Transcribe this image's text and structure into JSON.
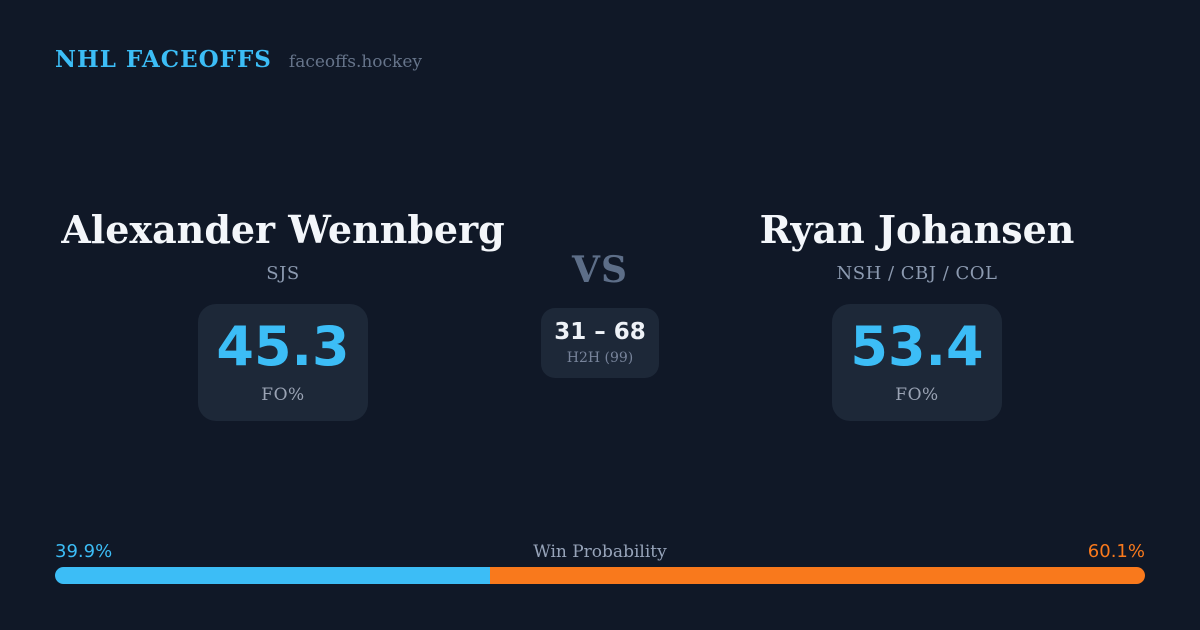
{
  "colors": {
    "bg": "#101827",
    "card": "#1d2838",
    "blue": "#3cbdf6",
    "orange": "#f9791c",
    "text-primary": "#f3f6fa",
    "text-muted": "#8c9ab0",
    "text-dim": "#5d6e88",
    "site": "#66748a"
  },
  "header": {
    "brand": "NHL FACEOFFS",
    "site": "faceoffs.hockey"
  },
  "matchup": {
    "vs_label": "VS",
    "h2h": {
      "score": "31 – 68",
      "label": "H2H (99)"
    },
    "players": [
      {
        "name": "Alexander Wennberg",
        "teams": "SJS",
        "fo_pct": "45.3",
        "stat_label": "FO%"
      },
      {
        "name": "Ryan Johansen",
        "teams": "NSH / CBJ / COL",
        "fo_pct": "53.4",
        "stat_label": "FO%"
      }
    ]
  },
  "win_probability": {
    "label": "Win Probability",
    "left_pct": "39.9%",
    "right_pct": "60.1%",
    "left_value": 39.9,
    "right_value": 60.1
  },
  "chart_data": {
    "type": "bar",
    "orientation": "horizontal_stacked",
    "title": "Win Probability",
    "categories": [
      "Win Probability"
    ],
    "series": [
      {
        "name": "Alexander Wennberg",
        "values": [
          39.9
        ],
        "color": "#3cbdf6"
      },
      {
        "name": "Ryan Johansen",
        "values": [
          60.1
        ],
        "color": "#f9791c"
      }
    ],
    "xlim": [
      0,
      100
    ],
    "grid": false,
    "legend_position": "none",
    "annotations": {
      "faceoff_pct": {
        "Alexander Wennberg": 45.3,
        "Ryan Johansen": 53.4
      },
      "h2h_record": {
        "wennberg_wins": 31,
        "johansen_wins": 68,
        "total_faceoffs": 99
      }
    }
  }
}
